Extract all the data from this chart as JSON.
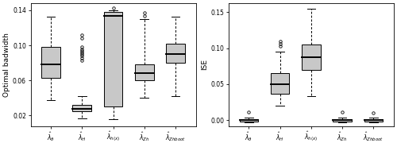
{
  "left_plot": {
    "ylabel": "Optimal badwidth",
    "ylim": [
      0.008,
      0.148
    ],
    "yticks": [
      0.02,
      0.06,
      0.1,
      0.14
    ],
    "ytick_labels": [
      "0.02",
      "0.06",
      "0.10",
      "0.14"
    ],
    "boxes": [
      {
        "label": "$\\hat{\\lambda}_{\\theta}$",
        "q1": 0.063,
        "median": 0.078,
        "q3": 0.098,
        "whisker_low": 0.038,
        "whisker_high": 0.133,
        "outliers": []
      },
      {
        "label": "$\\hat{\\lambda}_{H}$",
        "q1": 0.025,
        "median": 0.028,
        "q3": 0.032,
        "whisker_low": 0.017,
        "whisker_high": 0.042,
        "outliers": [
          0.083,
          0.086,
          0.088,
          0.09,
          0.092,
          0.094,
          0.096,
          0.098,
          0.108,
          0.112
        ]
      },
      {
        "label": "$\\hat{\\lambda}_{h(x)}$",
        "q1": 0.03,
        "median": 0.134,
        "q3": 0.138,
        "whisker_low": 0.016,
        "whisker_high": 0.14,
        "outliers": [
          0.143
        ]
      },
      {
        "label": "$\\hat{\\lambda}_{Zh}$",
        "q1": 0.06,
        "median": 0.068,
        "q3": 0.078,
        "whisker_low": 0.04,
        "whisker_high": 0.13,
        "outliers": [
          0.134,
          0.137
        ]
      },
      {
        "label": "$\\hat{\\lambda}_{Zhboot}$",
        "q1": 0.08,
        "median": 0.09,
        "q3": 0.102,
        "whisker_low": 0.042,
        "whisker_high": 0.133,
        "outliers": []
      }
    ]
  },
  "right_plot": {
    "ylabel": "ISE",
    "ylim": [
      -0.008,
      0.162
    ],
    "yticks": [
      0.0,
      0.05,
      0.1,
      0.15
    ],
    "ytick_labels": [
      "0.00",
      "0.05",
      "0.10",
      "0.15"
    ],
    "boxes": [
      {
        "label": "$\\hat{\\lambda}_{\\theta}$",
        "q1": -0.0015,
        "median": 0.0005,
        "q3": 0.002,
        "whisker_low": -0.003,
        "whisker_high": 0.004,
        "outliers": [
          0.012
        ]
      },
      {
        "label": "$\\hat{\\lambda}_{H}$",
        "q1": 0.037,
        "median": 0.05,
        "q3": 0.065,
        "whisker_low": 0.02,
        "whisker_high": 0.095,
        "outliers": [
          0.103,
          0.106,
          0.109
        ]
      },
      {
        "label": "$\\hat{\\lambda}_{h(x)}$",
        "q1": 0.07,
        "median": 0.087,
        "q3": 0.105,
        "whisker_low": 0.033,
        "whisker_high": 0.155,
        "outliers": []
      },
      {
        "label": "$\\hat{\\lambda}_{Zh}$",
        "q1": -0.0015,
        "median": 0.0005,
        "q3": 0.002,
        "whisker_low": -0.003,
        "whisker_high": 0.004,
        "outliers": [
          0.012
        ]
      },
      {
        "label": "$\\hat{\\lambda}_{Zhboot}$",
        "q1": -0.0015,
        "median": 0.0005,
        "q3": 0.002,
        "whisker_low": -0.003,
        "whisker_high": 0.004,
        "outliers": [
          0.01
        ]
      }
    ]
  },
  "box_color": "#c8c8c8",
  "background_color": "#ffffff",
  "tick_fontsize": 5.5,
  "label_fontsize": 6.5
}
